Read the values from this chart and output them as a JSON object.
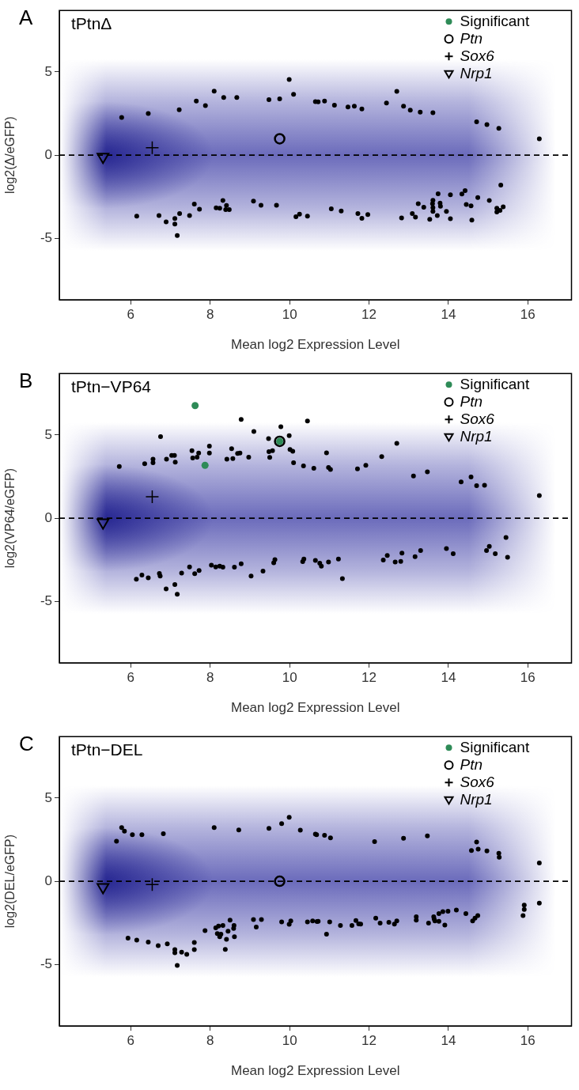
{
  "chart_data": [
    {
      "type": "scatter",
      "title": "tPtnΔ",
      "xlabel": "Mean log2 Expression Level",
      "ylabel": "log2(Δ/eGFP)",
      "annotations": [
        "A"
      ],
      "xlim": [
        4.2,
        17.1
      ],
      "ylim": [
        -8.7,
        8.7
      ],
      "xticks": [
        6,
        8,
        10,
        12,
        14,
        16
      ],
      "yticks": [
        -5,
        0,
        5
      ],
      "grid": false,
      "legend": "top right",
      "ref_lines": [
        {
          "axis": "y",
          "value": 0,
          "color": "#000000",
          "line_style": "dashed"
        }
      ],
      "series": [
        {
          "name": "Significant",
          "color": "#2e8b57",
          "marker": "circle"
        },
        {
          "name": "Ptn",
          "color": "#000000",
          "marker": "circle",
          "x": [
            9.75
          ],
          "values": [
            0.98
          ]
        },
        {
          "name": "Sox6",
          "color": "#000000",
          "marker": "cross",
          "x": [
            6.54
          ],
          "values": [
            0.44
          ]
        },
        {
          "name": "Nrp1",
          "color": "#000000",
          "marker": "triangle",
          "x": [
            5.3
          ],
          "values": [
            -0.15
          ]
        },
        {
          "color": "#000000",
          "marker": "circle",
          "x": [
            5.77,
            6.44,
            7.22,
            7.65,
            7.88,
            8.1,
            8.34,
            8.67,
            9.48,
            9.75,
            9.99,
            10.1,
            10.65,
            6.15,
            6.71,
            6.89,
            7.11,
            7.11,
            7.17,
            7.23,
            7.48,
            7.6,
            7.73,
            8.15,
            8.24,
            8.32,
            8.41,
            8.39,
            8.48,
            9.09,
            9.28,
            9.67,
            10.16,
            10.25,
            10.45,
            10.72,
            10.88,
            11.13,
            11.47,
            11.63,
            11.82,
            12.44,
            12.7,
            12.87,
            13.04,
            13.29,
            13.61,
            14.71,
            14.97,
            15.27,
            16.29,
            11.05,
            11.3,
            11.72,
            11.82,
            11.97,
            12.82,
            13.09,
            13.17,
            13.24,
            13.38,
            13.53,
            13.6,
            13.61,
            13.61,
            13.61,
            13.74,
            13.72,
            13.79,
            13.8,
            13.95,
            14.05,
            14.05,
            14.34,
            14.42,
            14.45,
            14.57,
            14.59,
            14.74,
            15.03,
            15.22,
            15.22,
            15.3,
            15.38,
            15.32
          ],
          "values": [
            2.27,
            2.5,
            2.73,
            3.25,
            2.98,
            3.84,
            3.47,
            3.47,
            3.33,
            3.38,
            4.55,
            3.66,
            3.22,
            -3.67,
            -3.63,
            -4.02,
            -3.81,
            -4.14,
            -4.83,
            -3.52,
            -3.63,
            -2.94,
            -3.25,
            -3.17,
            -3.2,
            -2.73,
            -3.03,
            -3.28,
            -3.28,
            -2.77,
            -3.02,
            -3.02,
            -3.7,
            -3.55,
            -3.67,
            3.2,
            3.25,
            3.0,
            2.89,
            2.94,
            2.77,
            3.13,
            3.83,
            2.94,
            2.7,
            2.58,
            2.55,
            2.0,
            1.84,
            1.61,
            0.98,
            -3.23,
            -3.36,
            -3.52,
            -3.8,
            -3.58,
            -3.78,
            -3.52,
            -3.73,
            -2.92,
            -3.13,
            -3.86,
            -2.92,
            -2.72,
            -3.16,
            -3.39,
            -2.33,
            -3.63,
            -2.89,
            -3.08,
            -3.39,
            -2.39,
            -3.83,
            -2.34,
            -2.14,
            -2.97,
            -3.05,
            -3.91,
            -2.55,
            -2.73,
            -3.2,
            -3.42,
            -3.33,
            -3.11,
            -1.8
          ]
        }
      ]
    },
    {
      "type": "scatter",
      "title": "tPtn−VP64",
      "xlabel": "Mean log2 Expression Level",
      "ylabel": "log2(VP64/eGFP)",
      "annotations": [
        "B"
      ],
      "xlim": [
        4.2,
        17.1
      ],
      "ylim": [
        -8.7,
        8.7
      ],
      "xticks": [
        6,
        8,
        10,
        12,
        14,
        16
      ],
      "yticks": [
        -5,
        0,
        5
      ],
      "grid": false,
      "legend": "top right",
      "ref_lines": [
        {
          "axis": "y",
          "value": 0,
          "color": "#000000",
          "line_style": "dashed"
        }
      ],
      "series": [
        {
          "name": "Significant",
          "color": "#2e8b57",
          "marker": "circle",
          "x": [
            7.62,
            7.87,
            9.75
          ],
          "values": [
            6.77,
            3.18,
            4.62
          ]
        },
        {
          "name": "Ptn",
          "color": "#000000",
          "marker": "circle",
          "x": [
            9.75
          ],
          "values": [
            4.62
          ]
        },
        {
          "name": "Sox6",
          "color": "#000000",
          "marker": "cross",
          "x": [
            6.54
          ],
          "values": [
            1.29
          ]
        },
        {
          "name": "Nrp1",
          "color": "#000000",
          "marker": "triangle",
          "x": [
            5.3
          ],
          "values": [
            -0.3
          ]
        },
        {
          "color": "#000000",
          "marker": "circle",
          "x": [
            5.71,
            6.35,
            6.56,
            6.56,
            6.75,
            6.9,
            7.03,
            7.1,
            7.12,
            7.54,
            7.56,
            7.67,
            7.71,
            7.98,
            7.98,
            8.42,
            8.54,
            8.57,
            8.69,
            8.75,
            8.78,
            8.97,
            9.1,
            9.47,
            9.48,
            9.57,
            9.5,
            9.78,
            9.99,
            10.01,
            10.08,
            10.1,
            10.35,
            10.45,
            10.61,
            6.14,
            6.28,
            6.44,
            6.72,
            6.74,
            6.89,
            7.11,
            7.17,
            7.28,
            7.48,
            7.61,
            7.72,
            8.03,
            8.14,
            8.24,
            8.32,
            8.61,
            8.78,
            9.03,
            9.33,
            9.6,
            9.63,
            10.33,
            10.36,
            10.65,
            10.76,
            10.93,
            10.98,
            11.03,
            11.71,
            11.92,
            12.32,
            12.7,
            13.12,
            13.47,
            14.32,
            14.57,
            14.71,
            14.91,
            16.29,
            10.8,
            10.98,
            11.23,
            11.33,
            12.36,
            12.46,
            12.66,
            12.8,
            12.83,
            13.16,
            13.3,
            13.95,
            14.12,
            14.96,
            15.03,
            15.18,
            15.45,
            15.49
          ],
          "values": [
            3.11,
            3.27,
            3.55,
            3.33,
            4.91,
            3.55,
            3.77,
            3.77,
            3.37,
            4.06,
            3.62,
            3.67,
            3.92,
            4.33,
            3.92,
            3.55,
            4.18,
            3.59,
            3.89,
            3.92,
            5.94,
            3.67,
            5.21,
            4.79,
            4.0,
            4.06,
            3.65,
            5.5,
            4.96,
            4.13,
            4.03,
            3.34,
            3.15,
            5.84,
            3.0,
            -3.67,
            -3.42,
            -3.59,
            -3.33,
            -3.48,
            -4.25,
            -3.99,
            -4.57,
            -3.3,
            -2.93,
            -3.34,
            -3.15,
            -2.83,
            -2.93,
            -2.89,
            -2.95,
            -2.95,
            -2.74,
            -3.48,
            -3.18,
            -2.68,
            -2.49,
            -2.61,
            -2.46,
            -2.54,
            -2.71,
            3.93,
            3.05,
            2.93,
            2.96,
            3.18,
            3.7,
            4.5,
            2.54,
            2.79,
            2.18,
            2.48,
            1.95,
            1.98,
            1.36,
            -2.89,
            -2.64,
            -2.46,
            -3.64,
            -2.52,
            -2.24,
            -2.64,
            -2.6,
            -2.1,
            -2.32,
            -1.94,
            -1.83,
            -2.14,
            -1.94,
            -1.7,
            -2.14,
            -1.16,
            -2.35
          ]
        }
      ]
    },
    {
      "type": "scatter",
      "title": "tPtn−DEL",
      "xlabel": "Mean log2 Expression Level",
      "ylabel": "log2(DEL/eGFP)",
      "annotations": [
        "C"
      ],
      "xlim": [
        4.2,
        17.1
      ],
      "ylim": [
        -8.7,
        8.7
      ],
      "xticks": [
        6,
        8,
        10,
        12,
        14,
        16
      ],
      "yticks": [
        -5,
        0,
        5
      ],
      "grid": false,
      "legend": "top right",
      "ref_lines": [
        {
          "axis": "y",
          "value": 0,
          "color": "#000000",
          "line_style": "dashed"
        }
      ],
      "series": [
        {
          "name": "Significant",
          "color": "#2e8b57",
          "marker": "circle"
        },
        {
          "name": "Ptn",
          "color": "#000000",
          "marker": "circle",
          "x": [
            9.75
          ],
          "values": [
            0
          ]
        },
        {
          "name": "Sox6",
          "color": "#000000",
          "marker": "cross",
          "x": [
            6.54
          ],
          "values": [
            -0.2
          ]
        },
        {
          "name": "Nrp1",
          "color": "#000000",
          "marker": "triangle",
          "x": [
            5.3
          ],
          "values": [
            -0.4
          ]
        },
        {
          "color": "#000000",
          "marker": "circle",
          "x": [
            5.64,
            5.77,
            5.84,
            6.04,
            6.28,
            6.82,
            8.1,
            8.72,
            9.48,
            9.8,
            9.99,
            10.27,
            10.65,
            5.93,
            6.15,
            6.44,
            6.69,
            6.92,
            7.11,
            7.11,
            7.17,
            7.28,
            7.41,
            7.6,
            7.6,
            7.87,
            8.14,
            8.21,
            8.32,
            8.18,
            8.24,
            8.27,
            8.41,
            8.45,
            8.6,
            8.59,
            8.61,
            8.5,
            8.38,
            9.09,
            9.29,
            9.16,
            9.8,
            9.99,
            10.03,
            10.45,
            10.58,
            10.69,
            10.68,
            10.88,
            11.03,
            12.14,
            12.87,
            13.47,
            14.58,
            14.71,
            14.75,
            14.97,
            15.27,
            15.28,
            16.29,
            10.72,
            11.01,
            11.28,
            10.93,
            11.57,
            11.67,
            11.74,
            11.79,
            12.17,
            12.28,
            12.5,
            12.64,
            12.7,
            13.19,
            13.19,
            13.5,
            13.63,
            13.64,
            13.66,
            13.76,
            13.76,
            13.86,
            13.91,
            13.99,
            14.2,
            14.44,
            14.61,
            14.67,
            14.74,
            15.88,
            15.91,
            15.91,
            16.29
          ],
          "values": [
            2.41,
            3.23,
            3.01,
            2.8,
            2.8,
            2.86,
            3.23,
            3.09,
            3.18,
            3.46,
            3.84,
            3.07,
            2.83,
            -3.42,
            -3.54,
            -3.66,
            -3.87,
            -3.76,
            -4.11,
            -4.3,
            -5.06,
            -4.27,
            -4.39,
            -3.68,
            -4.11,
            -2.97,
            -2.8,
            -2.69,
            -2.66,
            -3.15,
            -3.34,
            -3.18,
            -3.49,
            -3.0,
            -2.66,
            -2.84,
            -3.34,
            -2.34,
            -4.1,
            -2.3,
            -2.3,
            -2.75,
            -2.44,
            -2.59,
            -2.38,
            -2.44,
            -2.38,
            -2.42,
            2.8,
            2.76,
            2.61,
            2.38,
            2.58,
            2.73,
            1.85,
            2.36,
            1.93,
            1.82,
            1.68,
            1.44,
            1.1,
            -2.41,
            -2.45,
            -2.66,
            -3.18,
            -2.66,
            -2.36,
            -2.56,
            -2.58,
            -2.22,
            -2.52,
            -2.47,
            -2.58,
            -2.38,
            -2.14,
            -2.34,
            -2.52,
            -2.14,
            -2.27,
            -2.38,
            -1.94,
            -2.41,
            -1.83,
            -2.64,
            -1.8,
            -1.73,
            -1.94,
            -2.38,
            -2.22,
            -2.07,
            -2.07,
            -1.69,
            -1.44,
            -1.32
          ]
        }
      ]
    }
  ]
}
